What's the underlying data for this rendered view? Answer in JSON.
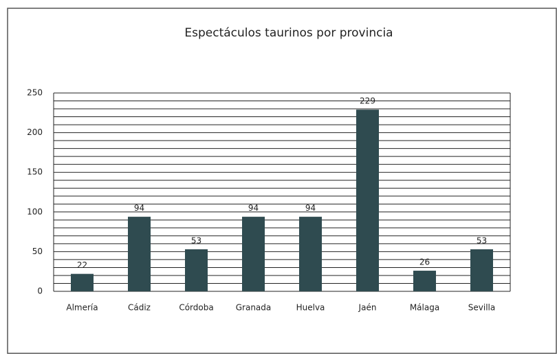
{
  "chart_data": {
    "type": "bar",
    "title": "Espectáculos taurinos por provincia",
    "categories": [
      "Almería",
      "Cádiz",
      "Córdoba",
      "Granada",
      "Huelva",
      "Jaén",
      "Málaga",
      "Sevilla"
    ],
    "values": [
      22,
      94,
      53,
      94,
      94,
      229,
      26,
      53
    ],
    "color": "#2f4b50",
    "ylim": [
      0,
      250
    ],
    "yticks": [
      0,
      50,
      100,
      150,
      200,
      250
    ],
    "minor_yticks": [
      10,
      20,
      30,
      40,
      60,
      70,
      80,
      90,
      110,
      120,
      130,
      140,
      160,
      170,
      180,
      190,
      210,
      220,
      230,
      240
    ],
    "grid": true,
    "data_labels": true
  }
}
